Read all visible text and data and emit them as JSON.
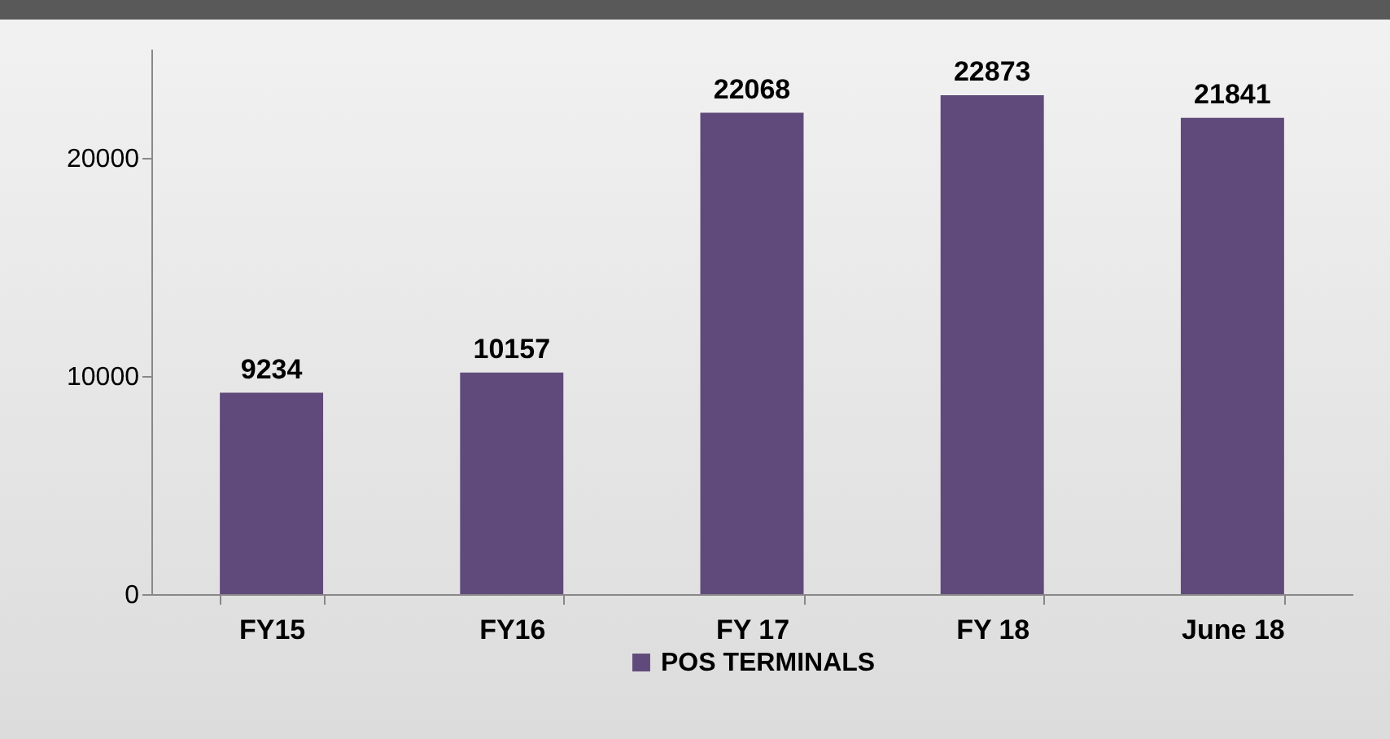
{
  "chart_data": {
    "type": "bar",
    "categories": [
      "FY15",
      "FY16",
      "FY 17",
      "FY 18",
      "June 18"
    ],
    "series": [
      {
        "name": "POS TERMINALS",
        "color": "#604a7b",
        "values": [
          9234,
          10157,
          22068,
          22873,
          21841
        ]
      }
    ],
    "ylim": [
      0,
      25000
    ],
    "yticks": [
      0,
      10000,
      20000
    ],
    "grid": false,
    "legend": "bottom",
    "data_labels": true
  }
}
